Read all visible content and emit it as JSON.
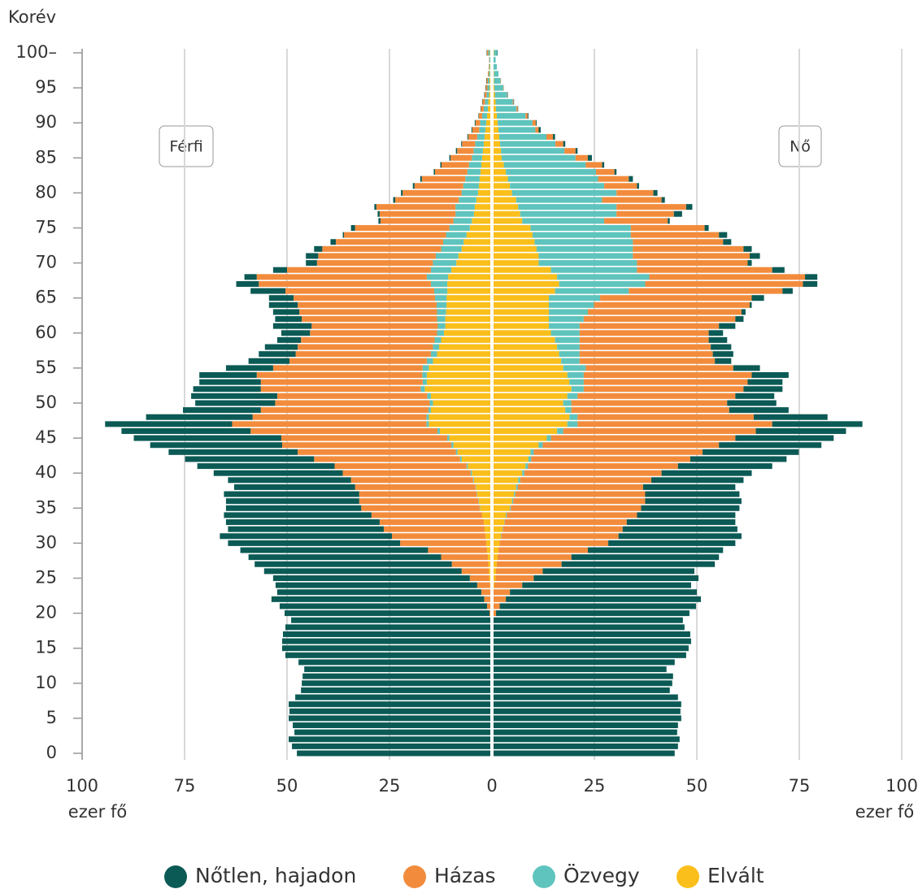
{
  "chart_data": {
    "type": "population_pyramid",
    "y_label": "Korév",
    "x_label": "ezer fő",
    "left_label": "Férfi",
    "right_label": "Nő",
    "ylim": [
      0,
      100
    ],
    "yticks": [
      0,
      5,
      10,
      15,
      20,
      25,
      30,
      35,
      40,
      45,
      50,
      55,
      60,
      65,
      70,
      75,
      80,
      85,
      90,
      95,
      {
        "value": 100,
        "label": "100–"
      }
    ],
    "xlim": [
      0,
      100
    ],
    "xticks": [
      0,
      25,
      50,
      75,
      100
    ],
    "grid": true,
    "ages": [
      0,
      1,
      2,
      3,
      4,
      5,
      6,
      7,
      8,
      9,
      10,
      11,
      12,
      13,
      14,
      15,
      16,
      17,
      18,
      19,
      20,
      21,
      22,
      23,
      24,
      25,
      26,
      27,
      28,
      29,
      30,
      31,
      32,
      33,
      34,
      35,
      36,
      37,
      38,
      39,
      40,
      41,
      42,
      43,
      44,
      45,
      46,
      47,
      48,
      49,
      50,
      51,
      52,
      53,
      54,
      55,
      56,
      57,
      58,
      59,
      60,
      61,
      62,
      63,
      64,
      65,
      66,
      67,
      68,
      69,
      70,
      71,
      72,
      73,
      74,
      75,
      76,
      77,
      78,
      79,
      80,
      81,
      82,
      83,
      84,
      85,
      86,
      87,
      88,
      89,
      90,
      91,
      92,
      93,
      94,
      95,
      96,
      97,
      98,
      99,
      100
    ],
    "series": [
      {
        "name": "Nőtlen, hajadon",
        "color": "#0b5a55",
        "male": [
          47.2,
          48.4,
          49.2,
          47.8,
          48.2,
          49.2,
          49,
          49.2,
          47.6,
          46.2,
          46,
          45.8,
          45.4,
          46.8,
          50,
          50.8,
          50.8,
          50.6,
          50,
          48.6,
          50,
          50.6,
          51.9,
          49.8,
          49.2,
          48,
          48.2,
          48.1,
          47,
          45.8,
          42,
          42,
          38,
          37.5,
          36,
          33,
          32.5,
          33,
          29.5,
          30,
          31.5,
          33.5,
          31.5,
          31.5,
          32.2,
          36,
          31.5,
          31,
          26,
          19,
          19.5,
          21,
          16.5,
          15,
          14,
          11.5,
          10,
          9,
          8,
          5.8,
          7,
          9.4,
          6.5,
          6.4,
          7,
          6,
          8.5,
          5.5,
          3,
          3.4,
          2.7,
          3,
          2,
          1.3,
          0.3,
          1,
          0.5,
          0.5,
          0.5,
          0.5,
          0.4,
          0.4,
          0.4,
          0.3,
          0.3,
          0.3,
          0.3,
          0.2,
          0.2,
          0.2,
          0.2,
          0.1,
          0.1,
          0.1,
          0.1,
          0.1,
          0.1,
          0,
          0,
          0,
          0.1
        ],
        "female": [
          44.2,
          45,
          45.4,
          44.8,
          45,
          45.8,
          45.6,
          45.8,
          45,
          43,
          43.6,
          43.8,
          42.2,
          44.2,
          47,
          47.6,
          48.2,
          48,
          46.6,
          46.2,
          47.2,
          47.9,
          47.6,
          45.6,
          41.2,
          40.2,
          37,
          37.4,
          36,
          33,
          31,
          30,
          28,
          26.5,
          24,
          24,
          23.5,
          23,
          22.5,
          22.5,
          22,
          23,
          23.5,
          23.5,
          25,
          24,
          22,
          22,
          18,
          14.5,
          12,
          9.5,
          9.5,
          8.5,
          9,
          6.5,
          4,
          5,
          5,
          4.5,
          3.5,
          4,
          2,
          1,
          0.5,
          3,
          2.5,
          3.5,
          3,
          3,
          1,
          2.5,
          2,
          2,
          2,
          1,
          0.5,
          2,
          1.5,
          0.8,
          1,
          0.5,
          1,
          0.5,
          0.5,
          1,
          0.5,
          0.5,
          0.5,
          0.5,
          0.2,
          0.2,
          0.1,
          0.1,
          0.1,
          0,
          0,
          0,
          0,
          0,
          0.1
        ]
      },
      {
        "name": "Házas",
        "color": "#f28c3c",
        "male": [
          0,
          0,
          0,
          0,
          0,
          0,
          0,
          0,
          0,
          0,
          0,
          0,
          0,
          0,
          0,
          0,
          0,
          0,
          0,
          0,
          0.2,
          0.8,
          1.5,
          2.2,
          3.1,
          4.7,
          6.6,
          8.9,
          11.4,
          14.4,
          21,
          22.8,
          24.6,
          25.4,
          27,
          28.9,
          29.1,
          28.7,
          29.4,
          29.8,
          31.2,
          32.2,
          35.6,
          38.6,
          41.3,
          40.5,
          45.6,
          47.4,
          42.4,
          40.9,
          37.7,
          36.6,
          39,
          39.5,
          40.4,
          36.5,
          33.5,
          33,
          33,
          32.6,
          31,
          30.8,
          33,
          33.6,
          33.9,
          34.5,
          36.3,
          42,
          41.5,
          35.1,
          28.3,
          28.7,
          29,
          26.2,
          24.9,
          23,
          17.8,
          18.5,
          19.3,
          15.5,
          14.4,
          11.9,
          10.6,
          7.9,
          6.7,
          5.2,
          4,
          3.2,
          2.2,
          1.7,
          1.1,
          0.8,
          0.7,
          0.6,
          0.5,
          0.4,
          0.3,
          0.2,
          0.1,
          0.1,
          0.3
        ],
        "female": [
          0,
          0,
          0,
          0,
          0,
          0,
          0,
          0,
          0,
          0,
          0,
          0,
          0,
          0,
          0,
          0,
          0,
          0,
          0,
          0,
          0.6,
          1.5,
          3,
          4,
          6.8,
          9.3,
          11.4,
          15.8,
          18,
          21.8,
          26.5,
          28.6,
          29.2,
          29.8,
          31.8,
          31.8,
          32.2,
          31.7,
          30.6,
          32,
          33.5,
          36.6,
          38.8,
          41.2,
          43,
          45,
          47,
          47.5,
          43,
          38.5,
          38,
          38.5,
          39,
          40,
          41,
          36,
          33,
          32.5,
          32,
          31.5,
          31.5,
          34,
          37,
          37.5,
          38,
          37,
          37.5,
          38.5,
          38,
          33,
          27,
          28.5,
          27,
          22,
          21.5,
          18,
          15.5,
          14,
          17,
          14.5,
          9,
          8,
          7.5,
          4.5,
          4,
          3,
          2.7,
          1.9,
          1.6,
          0.8,
          0.8,
          0.5,
          0.3,
          0.2,
          0.1,
          0.1,
          0.1,
          0,
          0,
          0,
          0
        ]
      },
      {
        "name": "Özvegy",
        "color": "#5ec4bd",
        "male": [
          0,
          0,
          0,
          0,
          0,
          0,
          0,
          0,
          0,
          0,
          0,
          0,
          0,
          0,
          0,
          0,
          0,
          0,
          0,
          0,
          0,
          0,
          0,
          0,
          0,
          0,
          0,
          0,
          0,
          0,
          0,
          0,
          0,
          0,
          0,
          0.1,
          0.1,
          0.1,
          0.1,
          0.2,
          0.3,
          0.3,
          0.4,
          0.4,
          0.5,
          0.5,
          0.6,
          0.6,
          0.6,
          0.6,
          0.8,
          0.9,
          1,
          1,
          1.1,
          1.5,
          1.5,
          1.5,
          1.5,
          1.6,
          1.7,
          1.8,
          2,
          2.2,
          2.4,
          2.8,
          3.2,
          4,
          5.2,
          5,
          5.7,
          5.5,
          5,
          5,
          5,
          5,
          4.5,
          4.5,
          4.7,
          4.3,
          4,
          3.8,
          3.5,
          3.2,
          3,
          2.5,
          2.3,
          2.1,
          1.8,
          1.5,
          1.5,
          1.2,
          1,
          0.8,
          0.6,
          0.5,
          0.4,
          0.3,
          0.2,
          0.2,
          0.4
        ],
        "female": [
          0,
          0,
          0,
          0,
          0,
          0,
          0,
          0,
          0,
          0,
          0,
          0,
          0,
          0,
          0,
          0,
          0,
          0,
          0,
          0,
          0,
          0,
          0,
          0,
          0,
          0,
          0,
          0,
          0,
          0,
          0,
          0.1,
          0.1,
          0.1,
          0.2,
          0.2,
          0.3,
          0.3,
          0.4,
          0.5,
          0.5,
          0.6,
          0.7,
          0.8,
          1,
          1,
          1.5,
          2.5,
          2,
          1.5,
          2,
          2.5,
          3,
          3.5,
          4,
          5.5,
          4.5,
          5,
          5.5,
          6,
          7,
          7.5,
          8.5,
          9.5,
          11,
          12.5,
          18,
          21,
          22.5,
          21,
          24,
          23,
          23.5,
          24,
          24,
          24.5,
          20,
          23.5,
          24,
          21,
          25.5,
          23,
          22,
          22,
          20,
          18,
          15.5,
          13.5,
          11.5,
          9,
          8.5,
          7,
          5,
          4.2,
          3,
          2.2,
          1.6,
          1.1,
          0.8,
          0.5,
          0.8
        ]
      },
      {
        "name": "Elvált",
        "color": "#fbbf1c",
        "male": [
          0,
          0,
          0,
          0,
          0,
          0,
          0,
          0,
          0,
          0,
          0,
          0,
          0,
          0,
          0,
          0,
          0,
          0,
          0,
          0,
          0,
          0,
          0,
          0,
          0.1,
          0.3,
          0.4,
          0.5,
          0.6,
          0.8,
          1,
          1.2,
          1.4,
          1.6,
          2,
          2.5,
          2.8,
          3.2,
          3.5,
          4,
          4.5,
          5.5,
          7,
          8,
          9,
          10,
          12.3,
          15,
          15,
          14.5,
          14,
          14.5,
          16,
          15.5,
          15.5,
          15,
          14,
          13,
          12.5,
          12,
          11.3,
          11,
          11,
          10.8,
          10.7,
          10.7,
          10.5,
          10.5,
          10.3,
          9.5,
          8.3,
          7.8,
          7,
          6.5,
          5.8,
          5,
          4.5,
          4,
          3.8,
          3.4,
          3,
          2.8,
          2.6,
          2.4,
          2.2,
          2,
          1.8,
          1.6,
          1.4,
          1.2,
          1,
          0.8,
          0.6,
          0.5,
          0.3,
          0.2,
          0.2,
          0.1,
          0.1,
          0,
          0.1
        ],
        "female": [
          0,
          0,
          0,
          0,
          0,
          0,
          0,
          0,
          0,
          0,
          0,
          0,
          0,
          0,
          0,
          0,
          0,
          0,
          0,
          0,
          0,
          0,
          0,
          0,
          0.2,
          0.5,
          0.6,
          0.8,
          1,
          1.2,
          1.5,
          1.8,
          2.2,
          2.6,
          3,
          4,
          4.5,
          5,
          5.5,
          6,
          7,
          7.8,
          8.5,
          9,
          11,
          13,
          15.5,
          18,
          18.5,
          17.5,
          17,
          18,
          19,
          18.5,
          18,
          17,
          16.5,
          16,
          15.5,
          15,
          14,
          13.5,
          13.5,
          13.5,
          13.5,
          13.5,
          15,
          16,
          15.5,
          14,
          11,
          11,
          10.5,
          10,
          9.5,
          9,
          7,
          6.5,
          6,
          5.5,
          4.5,
          4,
          3.5,
          3,
          2.5,
          2,
          1.8,
          1.6,
          1.4,
          1.2,
          1,
          0.8,
          0.6,
          0.5,
          0.3,
          0.2,
          0.1,
          0.1,
          0,
          0,
          0.1
        ]
      }
    ]
  }
}
